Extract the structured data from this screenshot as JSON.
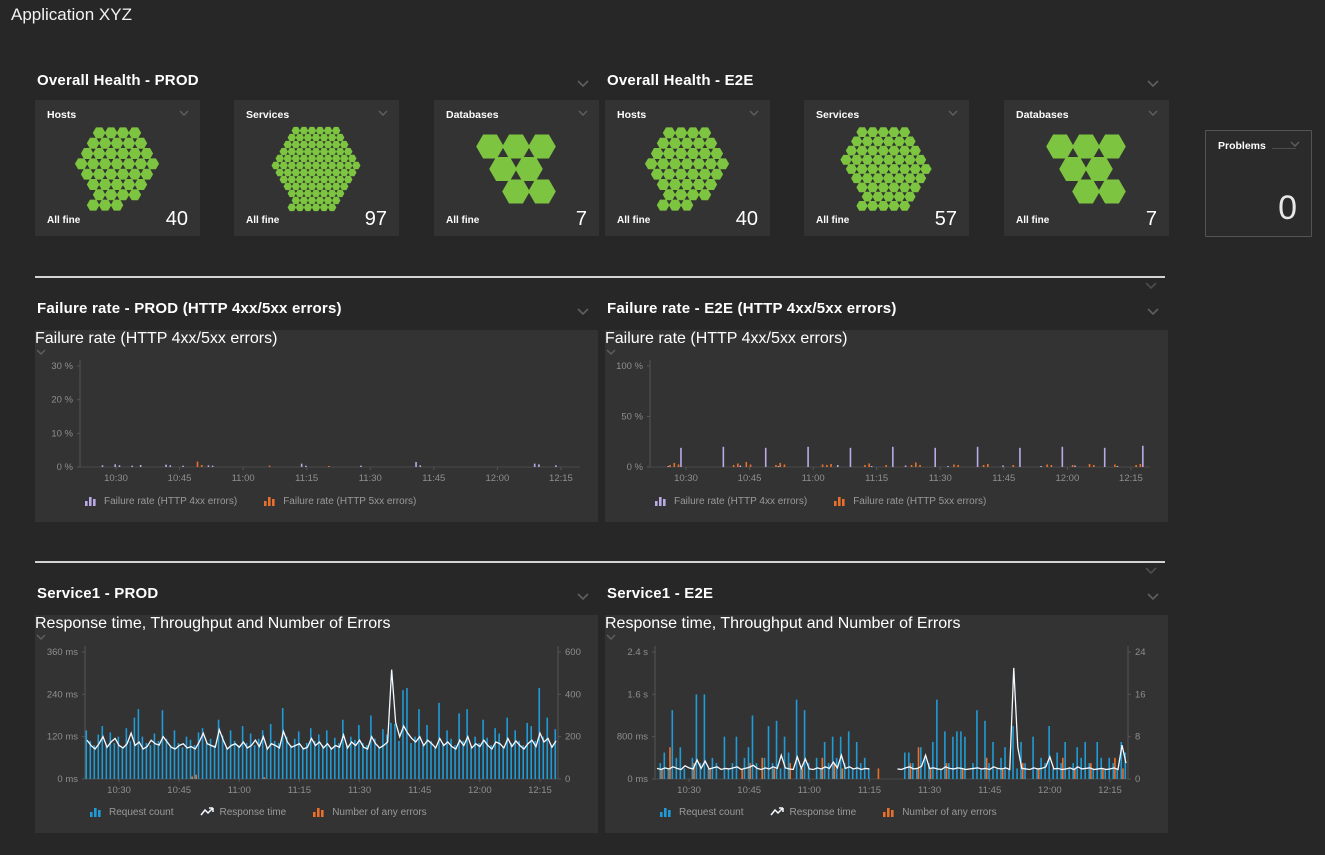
{
  "app_title": "Application XYZ",
  "colors": {
    "green": "#7dc540",
    "blue": "#1f9bd7",
    "orange": "#e8702a",
    "purple": "#b9aae4",
    "white_line": "#f4f9ff",
    "axis_text": "#8f8f8f",
    "axis_line": "#555555",
    "divider": "#d4d4d4"
  },
  "sections": {
    "health_prod": {
      "title": "Overall Health - PROD"
    },
    "health_e2e": {
      "title": "Overall Health - E2E"
    },
    "failure_prod": {
      "title": "Failure rate - PROD (HTTP 4xx/5xx errors)"
    },
    "failure_e2e": {
      "title": "Failure rate - E2E (HTTP 4xx/5xx errors)"
    },
    "service_prod": {
      "title": "Service1 - PROD"
    },
    "service_e2e": {
      "title": "Service1 - E2E"
    }
  },
  "health_tiles": [
    {
      "id": "hosts-prod",
      "label": "Hosts",
      "status": "All fine",
      "count": 40
    },
    {
      "id": "services-prod",
      "label": "Services",
      "status": "All fine",
      "count": 97
    },
    {
      "id": "databases-prod",
      "label": "Databases",
      "status": "All fine",
      "count": 7
    },
    {
      "id": "hosts-e2e",
      "label": "Hosts",
      "status": "All fine",
      "count": 40
    },
    {
      "id": "services-e2e",
      "label": "Services",
      "status": "All fine",
      "count": 57
    },
    {
      "id": "databases-e2e",
      "label": "Databases",
      "status": "All fine",
      "count": 7
    }
  ],
  "problems_tile": {
    "label": "Problems",
    "count": "0"
  },
  "charts": [
    {
      "id": "failure_prod",
      "tile_title": "Failure rate (HTTP 4xx/5xx errors)",
      "type": "bar",
      "n": 118,
      "yticks_left": [
        "30 %",
        "20 %",
        "10 %",
        "0 %"
      ],
      "yticks_right": [],
      "xtick_labels": [
        "10:30",
        "10:45",
        "11:00",
        "11:15",
        "11:30",
        "11:45",
        "12:00",
        "12:15"
      ],
      "xtick_idx": [
        8,
        23,
        38,
        53,
        68,
        83,
        98,
        113
      ],
      "series": [
        {
          "name": "Failure rate (HTTP 4xx errors)",
          "type": "bar",
          "color": "purple",
          "ymax": 30,
          "values": {
            "n": 118,
            "points": {
              "5": 0.5,
              "8": 0.8,
              "9": 0.5,
              "12": 0.4,
              "14": 0.6,
              "20": 0.7,
              "21": 0.5,
              "24": 0.4,
              "30": 0.5,
              "31": 0.4,
              "52": 1.0,
              "53": 0.4,
              "66": 0.4,
              "79": 1.5,
              "80": 0.5,
              "107": 1.0,
              "108": 0.8,
              "112": 0.5
            }
          }
        },
        {
          "name": "Failure rate (HTTP 5xx errors)",
          "type": "bar",
          "color": "orange",
          "ymax": 30,
          "values": {
            "n": 118,
            "points": {
              "27": 1.6,
              "28": 0.6,
              "44": 0.4,
              "58": 0.3
            }
          }
        }
      ],
      "legend": [
        {
          "label": "Failure rate (HTTP 4xx errors)",
          "color": "purple",
          "icon": "bars"
        },
        {
          "label": "Failure rate (HTTP 5xx errors)",
          "color": "orange",
          "icon": "bars"
        }
      ]
    },
    {
      "id": "failure_e2e",
      "tile_title": "Failure rate (HTTP 4xx/5xx errors)",
      "type": "bar",
      "n": 118,
      "yticks_left": [
        "100 %",
        "50 %",
        "0 %"
      ],
      "yticks_right": [],
      "xtick_labels": [
        "10:30",
        "10:45",
        "11:00",
        "11:15",
        "11:30",
        "11:45",
        "12:00",
        "12:15"
      ],
      "xtick_idx": [
        8,
        23,
        38,
        53,
        68,
        83,
        98,
        113
      ],
      "series": [
        {
          "name": "Failure rate (HTTP 4xx errors)",
          "type": "bar",
          "color": "purple",
          "ymax": 100,
          "values": {
            "n": 118,
            "points": {
              "4": 1,
              "7": 19,
              "17": 20,
              "21": 1.5,
              "27": 19,
              "30": 1,
              "37": 20,
              "44": 2,
              "47": 19,
              "52": 1,
              "57": 20,
              "60": 1.5,
              "67": 19,
              "70": 1,
              "77": 20,
              "83": 1.5,
              "87": 19,
              "92": 1,
              "97": 20,
              "100": 1.5,
              "107": 19,
              "110": 1,
              "116": 21
            }
          }
        },
        {
          "name": "Failure rate (HTTP 5xx errors)",
          "type": "bar",
          "color": "orange",
          "ymax": 100,
          "values": {
            "n": 118,
            "points": {
              "4": 2,
              "5": 4,
              "6": 2.5,
              "19": 2,
              "20": 3.5,
              "22": 5,
              "23": 2.5,
              "29": 2,
              "30": 4,
              "31": 2.5,
              "40": 2.5,
              "41": 2,
              "42": 3,
              "50": 2,
              "51": 3.5,
              "55": 2,
              "61": 2,
              "62": 4.5,
              "63": 2,
              "71": 2.5,
              "72": 2,
              "78": 2,
              "79": 3,
              "85": 2,
              "93": 2.5,
              "94": 2,
              "99": 2,
              "103": 3,
              "104": 2,
              "109": 2.5,
              "114": 2,
              "115": 3
            }
          }
        }
      ],
      "legend": [
        {
          "label": "Failure rate (HTTP 4xx errors)",
          "color": "purple",
          "icon": "bars"
        },
        {
          "label": "Failure rate (HTTP 5xx errors)",
          "color": "orange",
          "icon": "bars"
        }
      ]
    },
    {
      "id": "service_prod",
      "tile_title": "Response time, Throughput and Number of Errors",
      "type": "bar+line",
      "n": 118,
      "yticks_left": [
        "360 ms",
        "240 ms",
        "120 ms",
        "0 ms"
      ],
      "yticks_right": [
        "600",
        "400",
        "200",
        "0"
      ],
      "xtick_labels": [
        "10:30",
        "10:45",
        "11:00",
        "11:15",
        "11:30",
        "11:45",
        "12:00",
        "12:15"
      ],
      "xtick_idx": [
        8,
        23,
        38,
        53,
        68,
        83,
        98,
        113
      ],
      "series": [
        {
          "name": "Request count",
          "type": "bar",
          "color": "blue",
          "ymax": 600,
          "values": [
            230,
            180,
            160,
            210,
            250,
            160,
            220,
            170,
            200,
            150,
            240,
            180,
            290,
            330,
            200,
            170,
            160,
            215,
            180,
            325,
            190,
            160,
            230,
            170,
            150,
            200,
            185,
            160,
            220,
            240,
            170,
            190,
            160,
            280,
            205,
            150,
            230,
            180,
            160,
            250,
            170,
            215,
            160,
            190,
            230,
            150,
            260,
            180,
            170,
            335,
            200,
            160,
            190,
            225,
            150,
            170,
            240,
            180,
            210,
            160,
            230,
            150,
            195,
            170,
            280,
            160,
            200,
            185,
            255,
            170,
            160,
            300,
            190,
            150,
            235,
            210,
            265,
            260,
            180,
            420,
            430,
            170,
            200,
            330,
            160,
            255,
            180,
            150,
            360,
            170,
            230,
            190,
            160,
            310,
            180,
            330,
            150,
            200,
            170,
            280,
            195,
            160,
            240,
            215,
            150,
            290,
            170,
            230,
            180,
            160,
            265,
            250,
            180,
            430,
            200,
            290,
            160,
            235
          ]
        },
        {
          "name": "Number of any errors",
          "type": "bar",
          "color": "orange",
          "ymax": 600,
          "values": {
            "n": 118,
            "points": {
              "26": 12,
              "27": 20,
              "44": 8
            }
          }
        },
        {
          "name": "Response time",
          "type": "line",
          "color": "white_line",
          "ymax": 360,
          "values": [
            110,
            95,
            85,
            100,
            120,
            90,
            105,
            115,
            95,
            88,
            100,
            130,
            95,
            105,
            85,
            92,
            110,
            100,
            96,
            120,
            105,
            90,
            85,
            95,
            100,
            88,
            92,
            85,
            105,
            130,
            100,
            95,
            90,
            140,
            110,
            85,
            95,
            100,
            90,
            105,
            88,
            95,
            110,
            92,
            120,
            85,
            100,
            95,
            88,
            135,
            105,
            90,
            95,
            100,
            85,
            90,
            115,
            95,
            105,
            88,
            100,
            85,
            95,
            90,
            125,
            88,
            105,
            95,
            110,
            90,
            85,
            120,
            100,
            88,
            95,
            105,
            310,
            160,
            120,
            150,
            130,
            115,
            105,
            120,
            95,
            110,
            100,
            88,
            115,
            95,
            105,
            92,
            85,
            110,
            95,
            120,
            88,
            100,
            92,
            110,
            95,
            85,
            105,
            100,
            88,
            115,
            92,
            108,
            95,
            85,
            100,
            110,
            92,
            130,
            105,
            115,
            90,
            108
          ]
        }
      ],
      "legend": [
        {
          "label": "Request count",
          "color": "blue",
          "icon": "bars"
        },
        {
          "label": "Response time",
          "color": "white_line",
          "icon": "line"
        },
        {
          "label": "Number of any errors",
          "color": "orange",
          "icon": "bars"
        }
      ]
    },
    {
      "id": "service_e2e",
      "tile_title": "Response time, Throughput and Number of Errors",
      "type": "bar+line",
      "n": 118,
      "yticks_left": [
        "2.4 s",
        "1.6 s",
        "800 ms",
        "0 ms"
      ],
      "yticks_right": [
        "24",
        "16",
        "8",
        "0"
      ],
      "xtick_labels": [
        "10:30",
        "10:45",
        "11:00",
        "11:15",
        "11:30",
        "11:45",
        "12:00",
        "12:15"
      ],
      "xtick_idx": [
        8,
        23,
        38,
        53,
        68,
        83,
        98,
        113
      ],
      "series": [
        {
          "name": "Request count",
          "type": "bar",
          "color": "blue",
          "ymax": 24,
          "values": [
            0,
            3,
            5,
            2,
            13,
            4,
            6,
            2,
            0,
            4,
            16,
            3,
            16,
            2,
            4,
            3,
            0,
            8,
            2,
            3,
            8,
            0,
            4,
            6,
            12,
            3,
            0,
            4,
            10,
            3,
            11,
            2,
            8,
            5,
            0,
            15,
            2,
            13,
            3,
            0,
            4,
            2,
            7,
            3,
            8,
            4,
            8,
            3,
            9,
            2,
            7,
            3,
            4,
            2,
            0,
            0,
            0,
            0,
            0,
            0,
            0,
            0,
            5,
            5,
            3,
            2,
            6,
            4,
            3,
            7,
            15,
            2,
            9,
            3,
            8,
            9,
            9,
            8,
            0,
            3,
            13,
            2,
            11,
            3,
            7,
            2,
            4,
            6,
            2,
            10,
            2,
            7,
            3,
            0,
            8,
            2,
            4,
            3,
            10,
            2,
            5,
            3,
            7,
            2,
            3,
            6,
            4,
            7,
            3,
            2,
            7,
            4,
            2,
            4,
            3,
            2,
            7,
            5
          ]
        },
        {
          "name": "Number of any errors",
          "type": "bar",
          "color": "orange",
          "ymax": 24,
          "values": {
            "n": 118,
            "points": {
              "1": 2,
              "3": 6,
              "9": 3,
              "13": 2,
              "21": 2,
              "23": 3,
              "26": 4,
              "29": 2,
              "33": 3,
              "36": 2,
              "41": 4,
              "44": 3,
              "46": 2,
              "55": 2,
              "63": 3,
              "65": 6,
              "68": 2,
              "72": 3,
              "76": 2,
              "82": 4,
              "86": 2,
              "91": 3,
              "95": 2,
              "101": 4,
              "104": 2,
              "108": 3,
              "111": 2,
              "114": 4,
              "116": 2
            }
          }
        },
        {
          "name": "Response time",
          "type": "line",
          "color": "white_line",
          "ymax": 2400,
          "values": [
            200,
            180,
            210,
            190,
            230,
            200,
            180,
            250,
            210,
            190,
            360,
            200,
            340,
            190,
            210,
            230,
            180,
            200,
            190,
            210,
            230,
            180,
            200,
            220,
            260,
            200,
            180,
            210,
            190,
            230,
            200,
            450,
            210,
            190,
            180,
            420,
            200,
            380,
            190,
            180,
            210,
            190,
            230,
            200,
            320,
            210,
            450,
            200,
            230,
            190,
            210,
            180,
            200,
            190,
            null,
            null,
            null,
            null,
            null,
            null,
            190,
            180,
            210,
            230,
            190,
            200,
            240,
            450,
            200,
            210,
            190,
            180,
            230,
            200,
            190,
            210,
            200,
            180,
            190,
            200,
            210,
            190,
            200,
            180,
            230,
            200,
            190,
            210,
            180,
            2100,
            600,
            200,
            190,
            180,
            210,
            190,
            200,
            230,
            420,
            190,
            200,
            180,
            190,
            210,
            180,
            230,
            190,
            200,
            210,
            180,
            190,
            200,
            180,
            190,
            210,
            180,
            640,
            300
          ]
        }
      ],
      "legend": [
        {
          "label": "Request count",
          "color": "blue",
          "icon": "bars"
        },
        {
          "label": "Response time",
          "color": "white_line",
          "icon": "line"
        },
        {
          "label": "Number of any errors",
          "color": "orange",
          "icon": "bars"
        }
      ]
    }
  ]
}
